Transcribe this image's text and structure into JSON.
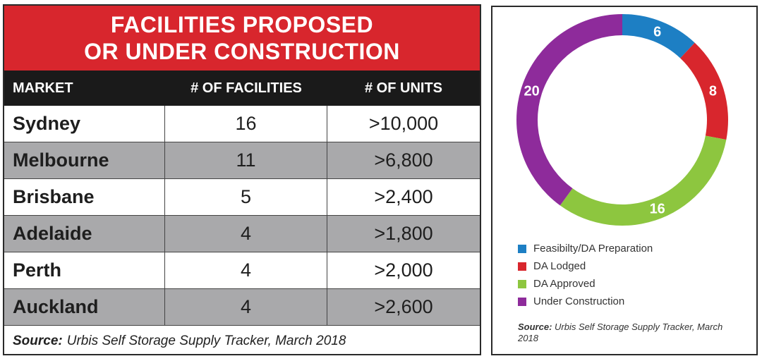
{
  "table": {
    "title_line1": "FACILITIES PROPOSED",
    "title_line2": "OR UNDER CONSTRUCTION",
    "headers": [
      "MARKET",
      "# OF FACILITIES",
      "# OF UNITS"
    ],
    "rows": [
      [
        "Sydney",
        "16",
        ">10,000"
      ],
      [
        "Melbourne",
        "11",
        ">6,800"
      ],
      [
        "Brisbane",
        "5",
        ">2,400"
      ],
      [
        "Adelaide",
        "4",
        ">1,800"
      ],
      [
        "Perth",
        "4",
        ">2,000"
      ],
      [
        "Auckland",
        "4",
        ">2,600"
      ]
    ],
    "source_label": "Source:",
    "source_text": "Urbis Self Storage Supply Tracker, March 2018",
    "colors": {
      "title_bg": "#d8262d",
      "header_bg": "#1a1a1a",
      "alt_row_bg": "#a9a9ab"
    }
  },
  "chart_data": {
    "type": "pie",
    "variant": "donut",
    "categories": [
      "Feasibilty/DA Preparation",
      "DA Lodged",
      "DA Approved",
      "Under Construction"
    ],
    "values": [
      6,
      8,
      16,
      20
    ],
    "colors": [
      "#1d7fc4",
      "#d8262d",
      "#8dc63f",
      "#8e2b9b"
    ],
    "value_labels": [
      "6",
      "8",
      "16",
      "20"
    ],
    "legend_position": "bottom-left",
    "source_label": "Source:",
    "source_text": "Urbis Self Storage Supply Tracker, March 2018"
  }
}
